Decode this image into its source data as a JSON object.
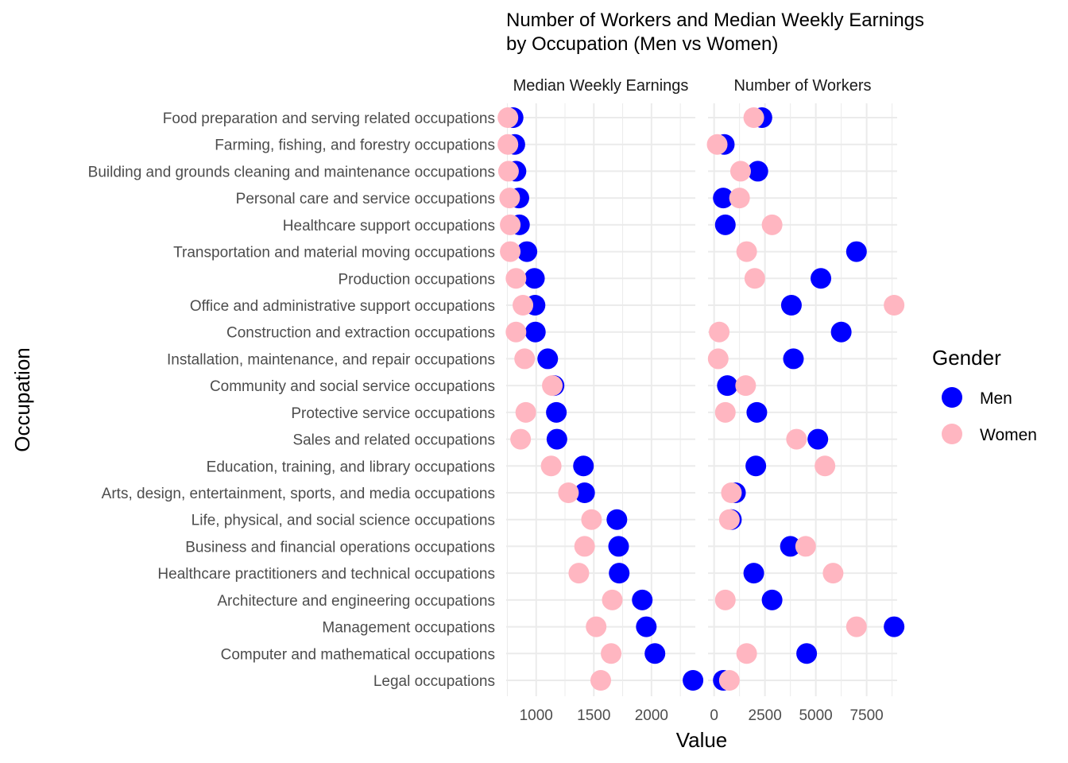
{
  "chart_data": {
    "type": "scatter",
    "title": [
      "Number of Workers and Median Weekly Earnings",
      "by Occupation (Men vs Women)"
    ],
    "xlabel": "Value",
    "ylabel": "Occupation",
    "legend": {
      "title": "Gender",
      "placement": "right"
    },
    "colors": {
      "Men": "#0000ff",
      "Women": "#ffb6c1",
      "grid": "#ebebeb"
    },
    "categories": [
      "Food preparation and serving related occupations",
      "Farming, fishing, and forestry occupations",
      "Building and grounds cleaning and maintenance occupations",
      "Personal care and service occupations",
      "Healthcare support occupations",
      "Transportation and material moving occupations",
      "Production occupations",
      "Office and administrative support occupations",
      "Construction and extraction occupations",
      "Installation, maintenance, and repair occupations",
      "Community and social service occupations",
      "Protective service occupations",
      "Sales and related occupations",
      "Education, training, and library occupations",
      "Arts, design, entertainment, sports, and media occupations",
      "Life, physical, and social science occupations",
      "Business and financial operations occupations",
      "Healthcare practitioners and technical occupations",
      "Architecture and engineering occupations",
      "Management occupations",
      "Computer and mathematical occupations",
      "Legal occupations"
    ],
    "panels": [
      {
        "label": "Median Weekly Earnings",
        "xlim": [
          740,
          2380
        ],
        "xticks": [
          1000,
          1500,
          2000
        ],
        "tick_labels": [
          "1000",
          "1500",
          "2000"
        ],
        "series": [
          {
            "name": "Men",
            "values": [
              800,
              815,
              825,
              850,
              855,
              920,
              985,
              990,
              993,
              1100,
              1155,
              1175,
              1180,
              1410,
              1420,
              1700,
              1715,
              1720,
              1920,
              1955,
              2030,
              2360
            ]
          },
          {
            "name": "Women",
            "values": [
              755,
              755,
              760,
              770,
              775,
              775,
              825,
              885,
              825,
              900,
              1140,
              910,
              865,
              1130,
              1280,
              1480,
              1420,
              1370,
              1660,
              1520,
              1650,
              1560
            ]
          }
        ]
      },
      {
        "label": "Number of Workers",
        "xlim": [
          -300,
          9000
        ],
        "xticks": [
          0,
          2500,
          5000,
          7500
        ],
        "tick_labels": [
          "0",
          "2500",
          "5000",
          "7500"
        ],
        "series": [
          {
            "name": "Men",
            "values": [
              2350,
              500,
              2150,
              450,
              550,
              7000,
              5250,
              3800,
              6250,
              3900,
              650,
              2100,
              5100,
              2050,
              1050,
              850,
              3750,
              1950,
              2850,
              8850,
              4550,
              450
            ]
          },
          {
            "name": "Women",
            "values": [
              1950,
              150,
              1300,
              1250,
              2850,
              1600,
              2000,
              8850,
              250,
              200,
              1550,
              550,
              4050,
              5450,
              850,
              750,
              4500,
              5850,
              550,
              7000,
              1600,
              750
            ]
          }
        ]
      }
    ]
  }
}
